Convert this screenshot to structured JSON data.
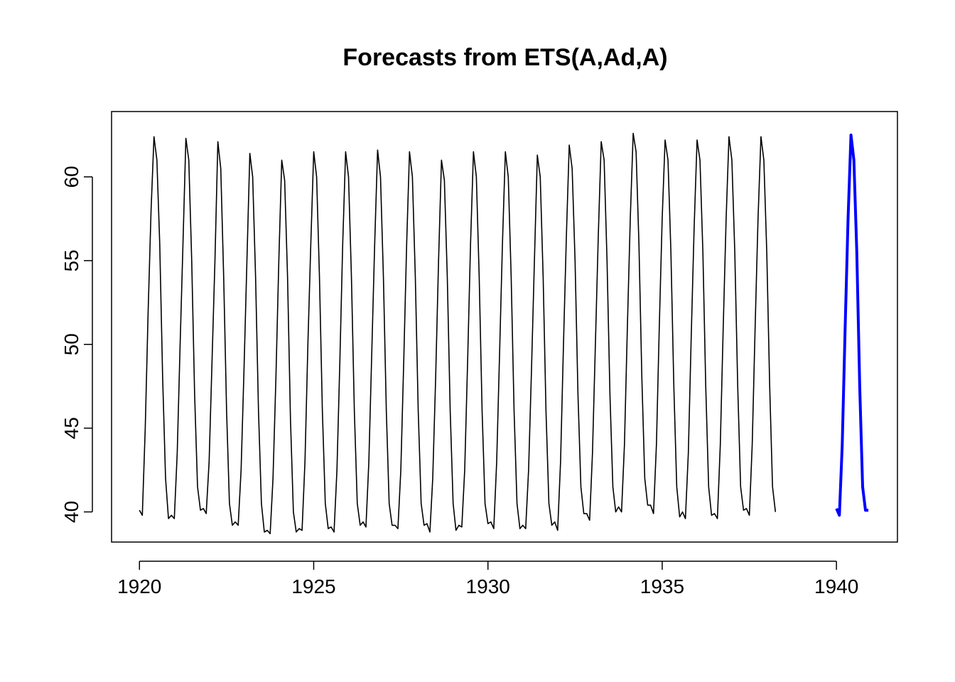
{
  "chart_data": {
    "type": "line",
    "title": "Forecasts from ETS(A,Ad,A)",
    "xlabel": "",
    "ylabel": "",
    "xlim": [
      1919.2,
      1941.75
    ],
    "ylim": [
      38.2,
      63.9
    ],
    "x_ticks": [
      1920,
      1925,
      1930,
      1935,
      1940
    ],
    "y_ticks": [
      40,
      45,
      50,
      55,
      60
    ],
    "grid": false,
    "legend": "none",
    "series": [
      {
        "role": "observed",
        "color": "#000000",
        "start": 1920,
        "frequency": 12,
        "values": [
          40.1,
          39.8,
          45.0,
          52.0,
          58.0,
          62.4,
          61.0,
          56.0,
          48.0,
          42.0,
          39.6,
          39.8,
          39.6,
          43.5,
          50.0,
          56.0,
          62.3,
          61.0,
          55.0,
          47.0,
          41.5,
          40.1,
          40.2,
          39.9,
          43.0,
          49.0,
          55.0,
          62.1,
          60.5,
          54.0,
          46.0,
          40.5,
          39.2,
          39.4,
          39.2,
          42.5,
          48.5,
          55.0,
          61.4,
          60.0,
          54.0,
          46.0,
          40.5,
          38.8,
          38.9,
          38.7,
          42.0,
          48.0,
          55.0,
          61.0,
          59.8,
          54.0,
          45.5,
          40.0,
          38.8,
          39.0,
          38.9,
          43.0,
          50.0,
          56.0,
          61.5,
          60.0,
          54.0,
          46.0,
          40.5,
          39.0,
          39.1,
          38.8,
          42.5,
          49.0,
          56.0,
          61.5,
          60.0,
          54.0,
          46.0,
          40.5,
          39.2,
          39.4,
          39.1,
          43.0,
          49.5,
          56.0,
          61.6,
          60.0,
          54.0,
          46.0,
          40.5,
          39.2,
          39.2,
          39.0,
          42.5,
          49.0,
          56.0,
          61.5,
          60.0,
          54.0,
          46.0,
          40.5,
          39.2,
          39.3,
          38.8,
          42.0,
          48.0,
          55.0,
          61.0,
          59.8,
          54.0,
          46.0,
          40.5,
          38.9,
          39.2,
          39.1,
          42.5,
          49.0,
          56.0,
          61.5,
          60.0,
          54.0,
          46.0,
          40.5,
          39.3,
          39.4,
          39.0,
          43.0,
          49.5,
          56.0,
          61.5,
          60.0,
          54.0,
          46.0,
          40.5,
          39.0,
          39.2,
          39.0,
          42.5,
          48.5,
          55.0,
          61.3,
          60.0,
          54.0,
          46.0,
          40.5,
          39.2,
          39.4,
          38.9,
          43.0,
          50.0,
          56.5,
          61.9,
          60.5,
          55.0,
          47.0,
          41.5,
          39.9,
          39.9,
          39.5,
          43.5,
          50.0,
          56.5,
          62.1,
          61.0,
          55.0,
          47.0,
          41.5,
          40.0,
          40.3,
          40.0,
          44.0,
          51.0,
          57.5,
          62.6,
          61.5,
          56.0,
          48.0,
          42.0,
          40.4,
          40.4,
          39.9,
          44.0,
          51.0,
          57.5,
          62.2,
          61.0,
          55.5,
          47.5,
          41.5,
          39.7,
          40.0,
          39.6,
          43.5,
          50.5,
          57.0,
          62.2,
          61.0,
          55.5,
          47.5,
          41.5,
          39.8,
          39.9,
          39.6,
          44.0,
          51.0,
          57.5,
          62.4,
          61.0,
          55.5,
          47.5,
          41.5,
          40.1,
          40.2,
          39.8,
          44.0,
          51.0,
          57.5,
          62.4,
          61.0,
          55.5,
          47.5,
          41.5,
          40.0
        ]
      },
      {
        "role": "forecast",
        "color": "#0000ff",
        "start": 1940,
        "frequency": 12,
        "values": [
          40.2,
          39.8,
          44.0,
          51.0,
          57.5,
          62.5,
          61.0,
          55.5,
          47.5,
          41.5,
          40.1,
          40.1
        ]
      }
    ]
  }
}
